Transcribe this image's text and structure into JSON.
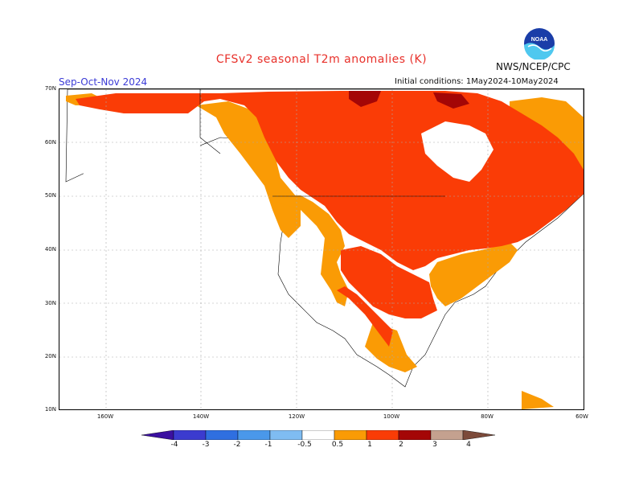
{
  "header": {
    "title": "CFSv2 seasonal T2m anomalies (K)",
    "season": "Sep-Oct-Nov 2024",
    "initial_conditions": "Initial conditions: 1May2024-10May2024",
    "agency": "NWS/NCEP/CPC",
    "logo_text": "NOAA"
  },
  "axes": {
    "lat_labels": [
      "70N",
      "60N",
      "50N",
      "40N",
      "30N",
      "20N",
      "10N"
    ],
    "lon_labels": [
      "160W",
      "140W",
      "120W",
      "100W",
      "80W",
      "60W"
    ]
  },
  "colorbar": {
    "labels": [
      "-4",
      "-3",
      "-2",
      "-1",
      "-0.5",
      "0.5",
      "1",
      "2",
      "3",
      "4"
    ],
    "colors": [
      "#3b10a0",
      "#3b3bcf",
      "#2f6fe0",
      "#4a98ea",
      "#7fbcf2",
      "#ffffff",
      "#fa9b05",
      "#fa3c06",
      "#a40606",
      "#c4a18f",
      "#7c4a3a"
    ]
  },
  "legend": {
    "anomaly_colors": {
      "light": "#fa9b05",
      "medium": "#fa3c06",
      "strong": "#a40606",
      "land_none": "#ffffff",
      "ocean": "#ffffff"
    }
  }
}
